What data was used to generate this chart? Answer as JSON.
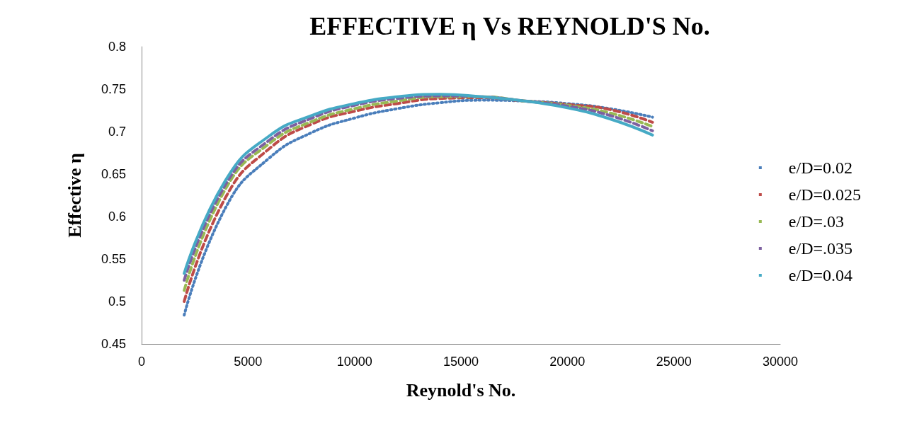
{
  "chart_data": {
    "type": "line",
    "title": "EFFECTIVE η Vs REYNOLD'S No.",
    "xlabel": "Reynold's No.",
    "ylabel": "Effective η",
    "x": [
      2000,
      4000,
      6000,
      8000,
      10000,
      12000,
      14000,
      16000,
      18000,
      20000,
      22000,
      24000
    ],
    "xlim": [
      0,
      30000
    ],
    "xticks": [
      0,
      5000,
      10000,
      15000,
      20000,
      25000,
      30000
    ],
    "ylim": [
      0.45,
      0.8
    ],
    "yticks": [
      0.45,
      0.5,
      0.55,
      0.6,
      0.65,
      0.7,
      0.75,
      0.8
    ],
    "grid": false,
    "legend": "right",
    "marker": "none",
    "series": [
      {
        "name": "e/D=0.02",
        "color": "#4a7ebb",
        "line_style": "dotted",
        "values": [
          0.484,
          0.613,
          0.669,
          0.699,
          0.716,
          0.727,
          0.734,
          0.737,
          0.736,
          0.733,
          0.727,
          0.717
        ]
      },
      {
        "name": "e/D=0.025",
        "color": "#be4b48",
        "line_style": "dashed",
        "values": [
          0.5,
          0.625,
          0.68,
          0.709,
          0.724,
          0.733,
          0.739,
          0.74,
          0.736,
          0.732,
          0.726,
          0.711
        ]
      },
      {
        "name": "e/D=.03",
        "color": "#98b954",
        "line_style": "dashed",
        "values": [
          0.513,
          0.635,
          0.686,
          0.712,
          0.727,
          0.736,
          0.741,
          0.741,
          0.736,
          0.731,
          0.722,
          0.706
        ]
      },
      {
        "name": "e/D=.035",
        "color": "#7d60a0",
        "line_style": "dashed",
        "values": [
          0.525,
          0.64,
          0.69,
          0.716,
          0.731,
          0.739,
          0.742,
          0.741,
          0.736,
          0.73,
          0.719,
          0.701
        ]
      },
      {
        "name": "e/D=0.04",
        "color": "#46aac5",
        "line_style": "solid",
        "values": [
          0.533,
          0.645,
          0.695,
          0.719,
          0.733,
          0.741,
          0.744,
          0.741,
          0.736,
          0.728,
          0.715,
          0.696
        ]
      }
    ]
  }
}
